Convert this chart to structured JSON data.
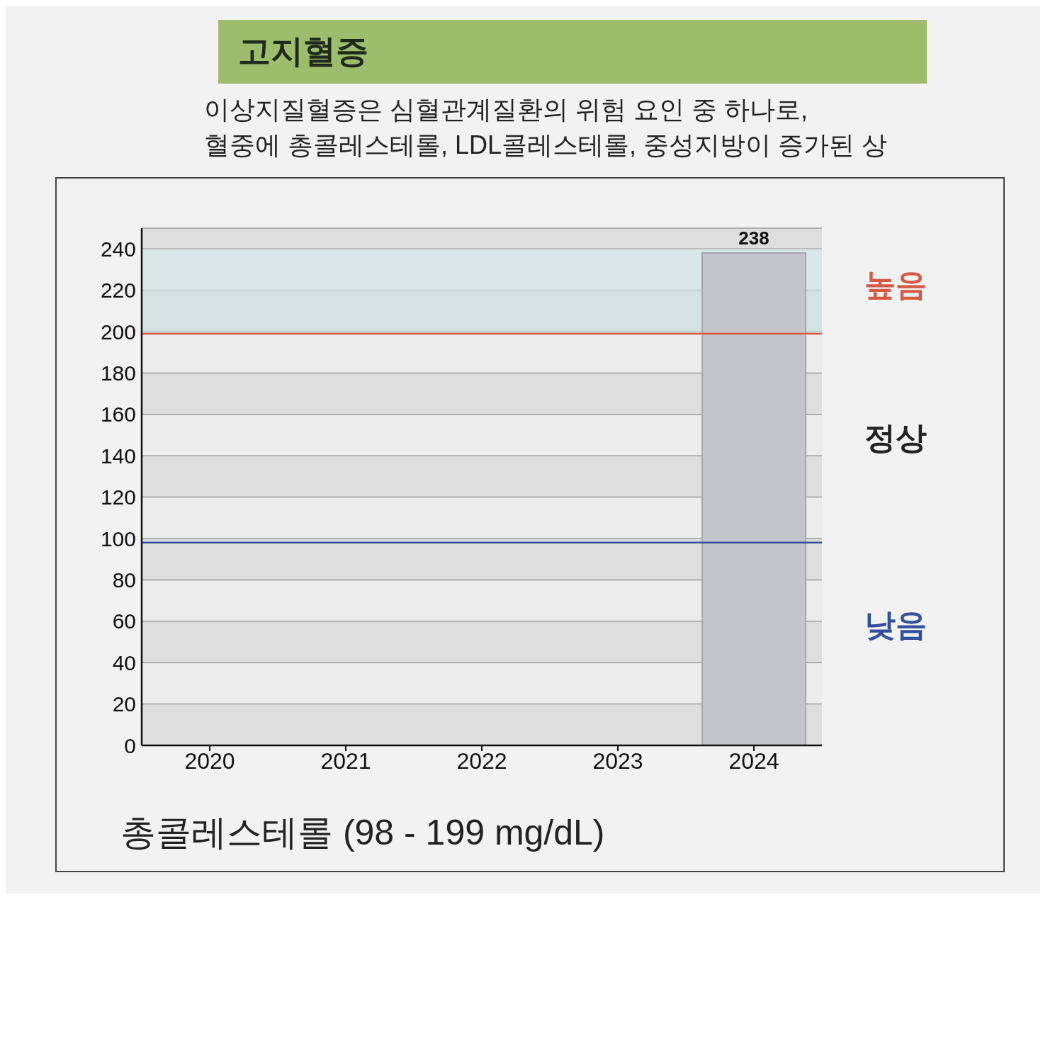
{
  "chart_data": {
    "type": "bar",
    "title": "고지혈증",
    "subtitle": "이상지질혈증은 심혈관계질환의 위험 요인 중 하나로,\n혈중에 총콜레스테롤, LDL콜레스테롤, 중성지방이 증가된 상",
    "xlabel": "총콜레스테롤 (98 - 199 mg/dL)",
    "categories": [
      "2020",
      "2021",
      "2022",
      "2023",
      "2024"
    ],
    "values": [
      null,
      null,
      null,
      null,
      238
    ],
    "color": "#c4c5ca",
    "data_labels": true,
    "ylim": [
      0,
      250
    ],
    "yticks": [
      0,
      20,
      40,
      60,
      80,
      100,
      120,
      140,
      160,
      180,
      200,
      220,
      240
    ],
    "grid": "y",
    "ref_lines": [
      {
        "axis": "y",
        "value": 199,
        "label": "높음",
        "color": "#d45a43"
      },
      {
        "axis": "y",
        "value": 98,
        "label": "낮음",
        "color": "#33509c"
      }
    ],
    "bands": [
      {
        "axis": "y",
        "from": 199,
        "to": 240,
        "color": "#cfe4e6"
      }
    ],
    "annotations": [
      "정상"
    ]
  }
}
